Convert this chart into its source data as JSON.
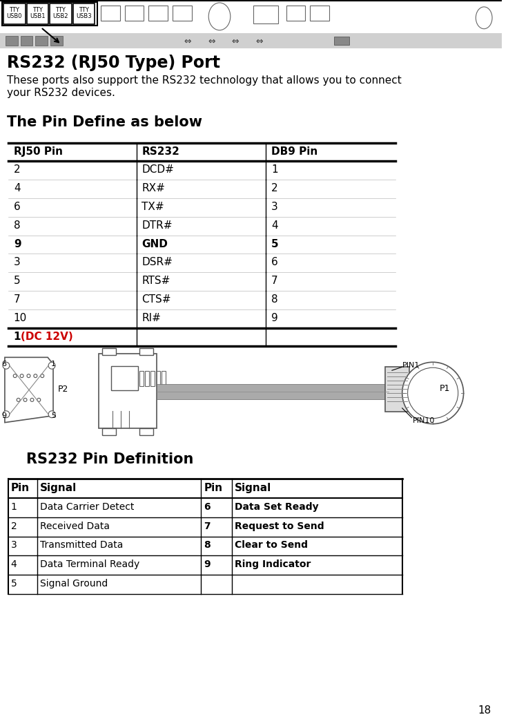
{
  "title": "RS232 (RJ50 Type) Port",
  "subtitle": "These ports also support the RS232 technology that allows you to connect\nyour RS232 devices.",
  "section1_title": "The Pin Define as below",
  "table1_headers": [
    "RJ50 Pin",
    "RS232",
    "DB9 Pin"
  ],
  "table1_rows": [
    [
      "2",
      "DCD#",
      "1"
    ],
    [
      "4",
      "RX#",
      "2"
    ],
    [
      "6",
      "TX#",
      "3"
    ],
    [
      "8",
      "DTR#",
      "4"
    ],
    [
      "9",
      "GND",
      "5"
    ],
    [
      "3",
      "DSR#",
      "6"
    ],
    [
      "5",
      "RTS#",
      "7"
    ],
    [
      "7",
      "CTS#",
      "8"
    ],
    [
      "10",
      "RI#",
      "9"
    ]
  ],
  "table1_gnd_row": 4,
  "table1_last_row_black": "1 ",
  "table1_last_row_red": "(DC 12V)",
  "section2_title": "RS232 Pin Definition",
  "table2_headers": [
    "Pin",
    "Signal",
    "Pin",
    "Signal"
  ],
  "table2_rows": [
    [
      "1",
      "Data Carrier Detect",
      "6",
      "Data Set Ready"
    ],
    [
      "2",
      "Received Data",
      "7",
      "Request to Send"
    ],
    [
      "3",
      "Transmitted Data",
      "8",
      "Clear to Send"
    ],
    [
      "4",
      "Data Terminal Ready",
      "9",
      "Ring Indicator"
    ],
    [
      "5",
      "Signal Ground",
      "",
      ""
    ]
  ],
  "page_number": "18",
  "bg_color": "#ffffff",
  "tty_labels": [
    "TTY\nUSB0",
    "TTY\nUSB1",
    "TTY\nUSB2",
    "TTY\nUSB3"
  ]
}
